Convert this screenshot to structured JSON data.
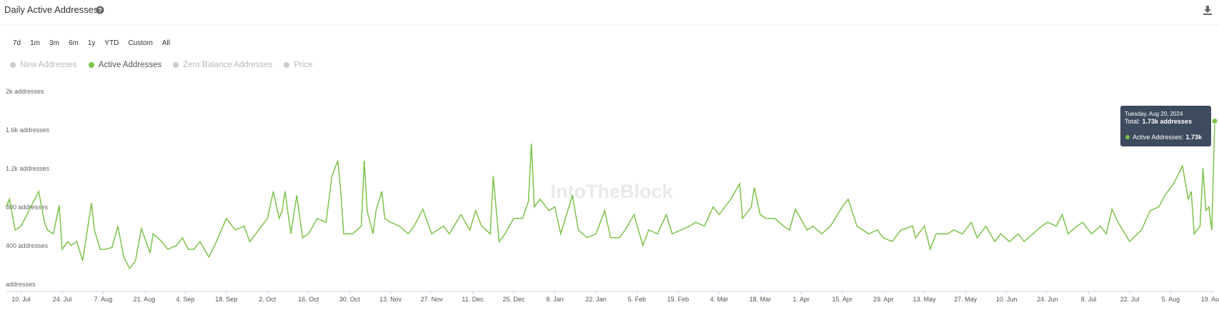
{
  "header": {
    "title": "Daily Active Addresses"
  },
  "range_buttons": [
    "7d",
    "1m",
    "3m",
    "6m",
    "1y",
    "YTD",
    "Custom",
    "All"
  ],
  "legend_inactive": [
    "New Addresses",
    "Zero Balance Addresses",
    "Price"
  ],
  "watermark": "IntoTheBlock",
  "tooltip": {
    "date": "Tuesday, Aug 20, 2024",
    "total_label": "Total:",
    "total_value": "1.73k addresses",
    "series_label": "Active Addresses:",
    "series_value": "1.73k"
  },
  "chart_data": {
    "type": "line",
    "x": [
      -5,
      -4,
      -2,
      0,
      2,
      6,
      8,
      9,
      11,
      13,
      14,
      16,
      17,
      19,
      21,
      24,
      25,
      27,
      29,
      31,
      33,
      35,
      37,
      39,
      41,
      44,
      45,
      48,
      50,
      53,
      55,
      57,
      59,
      61,
      64,
      66,
      70,
      73,
      76,
      78,
      81,
      84,
      86,
      88,
      89,
      90,
      92,
      94,
      96,
      98,
      101,
      104,
      106,
      108,
      109,
      110,
      113,
      116,
      117,
      118,
      120,
      121,
      123,
      124,
      126,
      129,
      132,
      134,
      137,
      140,
      144,
      146,
      150,
      153,
      155,
      157,
      160,
      161,
      163,
      165,
      168,
      171,
      173,
      174,
      175,
      177,
      180,
      182,
      184,
      188,
      190,
      193,
      196,
      199,
      201,
      204,
      206,
      209,
      212,
      214,
      217,
      220,
      222,
      225,
      228,
      230,
      233,
      236,
      238,
      242,
      245,
      246,
      249,
      250,
      252,
      254,
      257,
      260,
      262,
      264,
      268,
      270,
      273,
      276,
      280,
      282,
      285,
      289,
      292,
      294,
      297,
      300,
      304,
      305,
      308,
      310,
      312,
      316,
      318,
      321,
      324,
      326,
      329,
      332,
      334,
      337,
      340,
      342,
      345,
      348,
      350,
      353,
      355,
      357,
      360,
      362,
      365,
      368,
      370,
      372,
      374,
      378,
      382,
      385,
      388,
      390,
      393,
      396,
      398,
      399,
      400,
      402,
      403,
      404,
      405,
      406,
      407
    ],
    "series": [
      {
        "name": "Active Addresses",
        "color": "#7cc24a",
        "values": [
          840,
          920,
          600,
          640,
          760,
          1000,
          680,
          600,
          560,
          856,
          400,
          480,
          440,
          480,
          280,
          880,
          600,
          400,
          400,
          420,
          640,
          320,
          200,
          280,
          616,
          360,
          560,
          480,
          400,
          440,
          520,
          400,
          400,
          480,
          320,
          440,
          720,
          600,
          640,
          480,
          600,
          720,
          1000,
          720,
          800,
          1000,
          560,
          960,
          520,
          560,
          720,
          680,
          1160,
          1320,
          1000,
          560,
          560,
          640,
          1320,
          800,
          560,
          800,
          1000,
          720,
          680,
          640,
          560,
          640,
          816,
          560,
          640,
          560,
          760,
          600,
          800,
          640,
          560,
          1160,
          480,
          560,
          720,
          720,
          896,
          1496,
          840,
          920,
          800,
          840,
          560,
          960,
          600,
          520,
          560,
          800,
          520,
          520,
          600,
          760,
          440,
          600,
          560,
          760,
          560,
          600,
          640,
          680,
          640,
          840,
          760,
          920,
          1080,
          720,
          840,
          1040,
          760,
          720,
          720,
          640,
          600,
          816,
          600,
          640,
          560,
          640,
          840,
          920,
          640,
          560,
          600,
          520,
          480,
          600,
          640,
          520,
          640,
          400,
          560,
          560,
          600,
          560,
          680,
          520,
          640,
          480,
          560,
          480,
          560,
          480,
          560,
          640,
          680,
          640,
          760,
          560,
          640,
          680,
          560,
          640,
          560,
          816,
          680,
          480,
          600,
          800,
          840,
          960,
          1080,
          1264,
          920,
          1000,
          560,
          640,
          1240,
          800,
          840,
          600,
          1730
        ]
      }
    ],
    "xlim": [
      -5,
      407
    ],
    "xticks": [
      {
        "value": 0,
        "label": "10. Jul"
      },
      {
        "value": 14,
        "label": "24. Jul"
      },
      {
        "value": 28,
        "label": "7. Aug"
      },
      {
        "value": 42,
        "label": "21. Aug"
      },
      {
        "value": 56,
        "label": "4. Sep"
      },
      {
        "value": 70,
        "label": "18. Sep"
      },
      {
        "value": 84,
        "label": "2. Oct"
      },
      {
        "value": 98,
        "label": "16. Oct"
      },
      {
        "value": 112,
        "label": "30. Oct"
      },
      {
        "value": 126,
        "label": "13. Nov"
      },
      {
        "value": 140,
        "label": "27. Nov"
      },
      {
        "value": 154,
        "label": "11. Dec"
      },
      {
        "value": 168,
        "label": "25. Dec"
      },
      {
        "value": 182,
        "label": "8. Jan"
      },
      {
        "value": 196,
        "label": "22. Jan"
      },
      {
        "value": 210,
        "label": "5. Feb"
      },
      {
        "value": 224,
        "label": "19. Feb"
      },
      {
        "value": 238,
        "label": "4. Mar"
      },
      {
        "value": 252,
        "label": "18. Mar"
      },
      {
        "value": 266,
        "label": "1. Apr"
      },
      {
        "value": 280,
        "label": "15. Apr"
      },
      {
        "value": 294,
        "label": "29. Apr"
      },
      {
        "value": 308,
        "label": "13. May"
      },
      {
        "value": 322,
        "label": "27. May"
      },
      {
        "value": 336,
        "label": "10. Jun"
      },
      {
        "value": 350,
        "label": "24. Jun"
      },
      {
        "value": 364,
        "label": "8. Jul"
      },
      {
        "value": 378,
        "label": "22. Jul"
      },
      {
        "value": 392,
        "label": "5. Aug"
      },
      {
        "value": 406,
        "label": "19. Aug"
      }
    ],
    "ylim": [
      0,
      2000
    ],
    "yticks": [
      {
        "value": 0,
        "label": "addresses"
      },
      {
        "value": 400,
        "label": "400 addresses"
      },
      {
        "value": 800,
        "label": "800 addresses"
      },
      {
        "value": 1200,
        "label": "1.2k addresses"
      },
      {
        "value": 1600,
        "label": "1.6k addresses"
      },
      {
        "value": 2000,
        "label": "2k addresses"
      }
    ],
    "grid": false
  }
}
